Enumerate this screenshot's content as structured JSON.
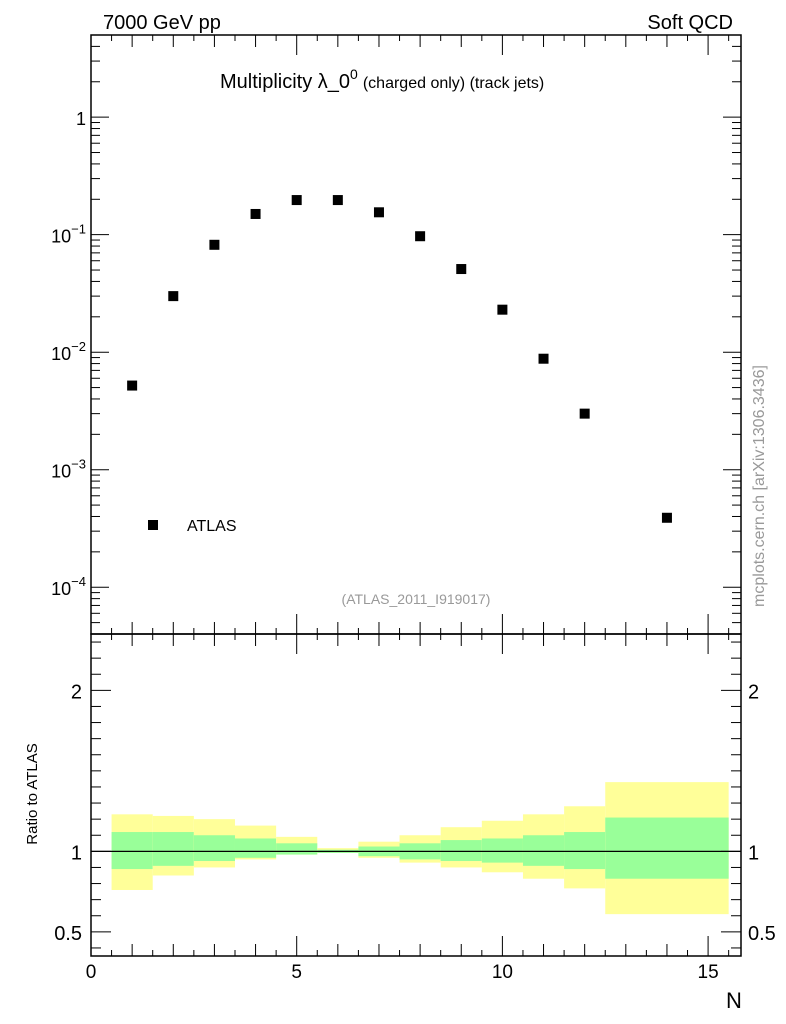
{
  "header": {
    "left": "7000 GeV pp",
    "right": "Soft QCD"
  },
  "side_label": "mcplots.cern.ch [arXiv:1306.3436]",
  "colors": {
    "band_outer": "#ffff99",
    "band_inner": "#99ff99",
    "data_marker": "#000000"
  },
  "chart_data": [
    {
      "type": "scatter",
      "title_main": "Multiplicity λ_0",
      "title_sup": "0",
      "title_sub": "(charged only) (track jets)",
      "analysis_tag": "(ATLAS_2011_I919017)",
      "legend": {
        "label": "ATLAS",
        "placement": "center-left"
      },
      "yscale": "log",
      "ylim": [
        4e-05,
        5
      ],
      "xlim": [
        0,
        15.8
      ],
      "y_tick_labels": [
        {
          "mant": "10",
          "exp": "−4",
          "value": 0.0001
        },
        {
          "mant": "10",
          "exp": "−3",
          "value": 0.001
        },
        {
          "mant": "10",
          "exp": "−2",
          "value": 0.01
        },
        {
          "mant": "10",
          "exp": "−1",
          "value": 0.1
        },
        {
          "mant": "1",
          "exp": "",
          "value": 1
        }
      ],
      "series": [
        {
          "name": "ATLAS",
          "x": [
            1,
            2,
            3,
            4,
            5,
            6,
            7,
            8,
            9,
            10,
            11,
            12,
            14
          ],
          "y": [
            0.0052,
            0.03,
            0.082,
            0.15,
            0.197,
            0.197,
            0.155,
            0.097,
            0.051,
            0.023,
            0.0088,
            0.003,
            0.00039
          ]
        }
      ]
    },
    {
      "type": "area",
      "ylabel": "Ratio to ATLAS",
      "xlabel": "N",
      "ylim": [
        0.35,
        2.35
      ],
      "xlim": [
        0,
        15.8
      ],
      "x_tick_labels": [
        "0",
        "5",
        "10",
        "15"
      ],
      "x_tick_values": [
        0,
        5,
        10,
        15
      ],
      "y_tick_labels": [
        "0.5",
        "1",
        "2"
      ],
      "y_tick_values": [
        0.5,
        1,
        2
      ],
      "reference_line": 1,
      "bins": [
        {
          "x0": 0.5,
          "x1": 1.5,
          "inner": [
            0.89,
            1.12
          ],
          "outer": [
            0.76,
            1.23
          ]
        },
        {
          "x0": 1.5,
          "x1": 2.5,
          "inner": [
            0.91,
            1.12
          ],
          "outer": [
            0.85,
            1.22
          ]
        },
        {
          "x0": 2.5,
          "x1": 3.5,
          "inner": [
            0.94,
            1.1
          ],
          "outer": [
            0.9,
            1.2
          ]
        },
        {
          "x0": 3.5,
          "x1": 4.5,
          "inner": [
            0.96,
            1.08
          ],
          "outer": [
            0.95,
            1.16
          ]
        },
        {
          "x0": 4.5,
          "x1": 5.5,
          "inner": [
            0.98,
            1.05
          ],
          "outer": [
            0.98,
            1.09
          ]
        },
        {
          "x0": 5.5,
          "x1": 6.5,
          "inner": [
            0.99,
            1.01
          ],
          "outer": [
            0.99,
            1.02
          ]
        },
        {
          "x0": 6.5,
          "x1": 7.5,
          "inner": [
            0.97,
            1.03
          ],
          "outer": [
            0.96,
            1.06
          ]
        },
        {
          "x0": 7.5,
          "x1": 8.5,
          "inner": [
            0.95,
            1.05
          ],
          "outer": [
            0.93,
            1.1
          ]
        },
        {
          "x0": 8.5,
          "x1": 9.5,
          "inner": [
            0.94,
            1.07
          ],
          "outer": [
            0.9,
            1.15
          ]
        },
        {
          "x0": 9.5,
          "x1": 10.5,
          "inner": [
            0.93,
            1.08
          ],
          "outer": [
            0.87,
            1.19
          ]
        },
        {
          "x0": 10.5,
          "x1": 11.5,
          "inner": [
            0.91,
            1.1
          ],
          "outer": [
            0.83,
            1.23
          ]
        },
        {
          "x0": 11.5,
          "x1": 12.5,
          "inner": [
            0.89,
            1.12
          ],
          "outer": [
            0.77,
            1.28
          ]
        },
        {
          "x0": 12.5,
          "x1": 15.5,
          "inner": [
            0.83,
            1.21
          ],
          "outer": [
            0.61,
            1.43
          ]
        }
      ]
    }
  ]
}
